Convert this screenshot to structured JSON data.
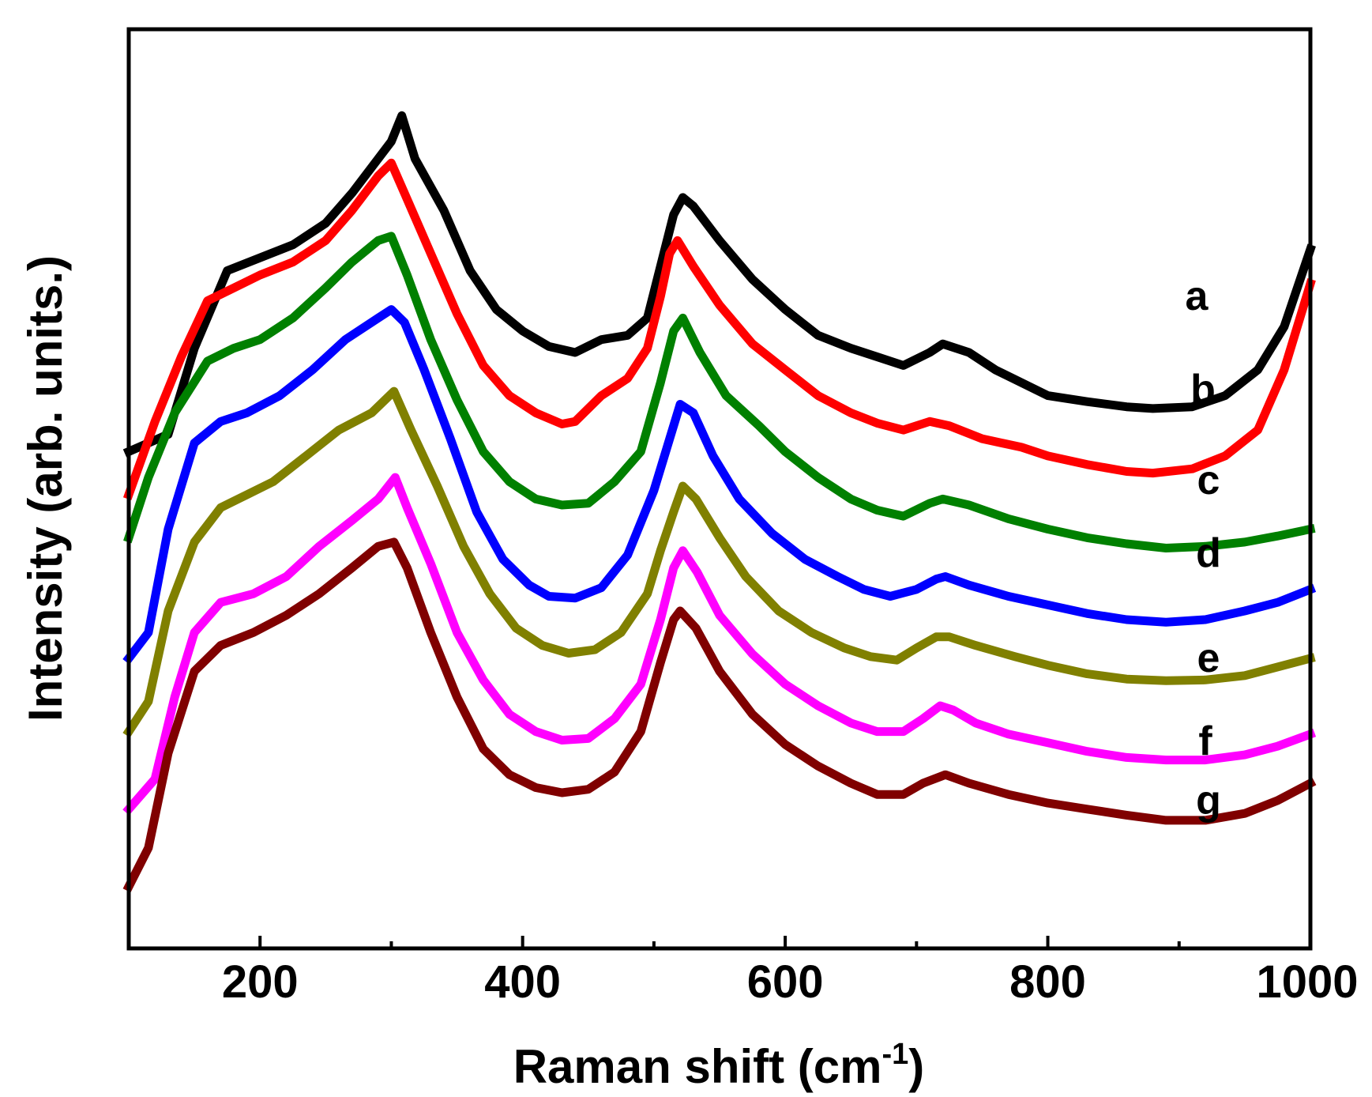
{
  "chart_data": {
    "type": "line",
    "title": "",
    "xlabel": "Raman shift (cm",
    "xlabel_sup": "-1",
    "xlabel_close": ")",
    "ylabel": "Intensity (arb. units.)",
    "xlim": [
      100,
      1000
    ],
    "ylim": [
      0,
      10
    ],
    "x_ticks": [
      200,
      400,
      600,
      800,
      1000
    ],
    "y_ticks_labeled": false,
    "grid": false,
    "legend": "inline labels at right",
    "series": [
      {
        "name": "a",
        "color": "#000000",
        "points": [
          [
            100,
            5.4
          ],
          [
            130,
            5.6
          ],
          [
            150,
            6.6
          ],
          [
            175,
            7.5
          ],
          [
            200,
            7.65
          ],
          [
            225,
            7.8
          ],
          [
            250,
            8.05
          ],
          [
            270,
            8.4
          ],
          [
            290,
            8.8
          ],
          [
            300,
            9.0
          ],
          [
            308,
            9.3
          ],
          [
            318,
            8.8
          ],
          [
            340,
            8.2
          ],
          [
            360,
            7.5
          ],
          [
            380,
            7.05
          ],
          [
            400,
            6.8
          ],
          [
            420,
            6.62
          ],
          [
            440,
            6.55
          ],
          [
            460,
            6.7
          ],
          [
            480,
            6.75
          ],
          [
            495,
            6.95
          ],
          [
            505,
            7.55
          ],
          [
            515,
            8.15
          ],
          [
            522,
            8.35
          ],
          [
            530,
            8.25
          ],
          [
            550,
            7.85
          ],
          [
            575,
            7.4
          ],
          [
            600,
            7.05
          ],
          [
            625,
            6.75
          ],
          [
            650,
            6.6
          ],
          [
            670,
            6.5
          ],
          [
            690,
            6.4
          ],
          [
            710,
            6.55
          ],
          [
            720,
            6.65
          ],
          [
            740,
            6.55
          ],
          [
            760,
            6.35
          ],
          [
            780,
            6.2
          ],
          [
            800,
            6.05
          ],
          [
            830,
            5.98
          ],
          [
            860,
            5.92
          ],
          [
            880,
            5.9
          ],
          [
            910,
            5.92
          ],
          [
            935,
            6.05
          ],
          [
            960,
            6.35
          ],
          [
            980,
            6.85
          ],
          [
            1000,
            7.75
          ]
        ]
      },
      {
        "name": "b",
        "color": "#ff0000",
        "points": [
          [
            100,
            4.9
          ],
          [
            120,
            5.75
          ],
          [
            140,
            6.5
          ],
          [
            160,
            7.15
          ],
          [
            180,
            7.3
          ],
          [
            200,
            7.45
          ],
          [
            225,
            7.6
          ],
          [
            250,
            7.85
          ],
          [
            270,
            8.2
          ],
          [
            290,
            8.6
          ],
          [
            300,
            8.75
          ],
          [
            310,
            8.4
          ],
          [
            330,
            7.7
          ],
          [
            350,
            7.0
          ],
          [
            370,
            6.4
          ],
          [
            390,
            6.05
          ],
          [
            410,
            5.85
          ],
          [
            430,
            5.72
          ],
          [
            440,
            5.75
          ],
          [
            460,
            6.05
          ],
          [
            480,
            6.25
          ],
          [
            495,
            6.6
          ],
          [
            505,
            7.2
          ],
          [
            512,
            7.7
          ],
          [
            518,
            7.85
          ],
          [
            530,
            7.55
          ],
          [
            550,
            7.1
          ],
          [
            575,
            6.65
          ],
          [
            600,
            6.35
          ],
          [
            625,
            6.05
          ],
          [
            650,
            5.85
          ],
          [
            670,
            5.73
          ],
          [
            690,
            5.65
          ],
          [
            710,
            5.75
          ],
          [
            725,
            5.7
          ],
          [
            750,
            5.55
          ],
          [
            780,
            5.45
          ],
          [
            800,
            5.35
          ],
          [
            830,
            5.25
          ],
          [
            860,
            5.17
          ],
          [
            880,
            5.15
          ],
          [
            910,
            5.2
          ],
          [
            935,
            5.35
          ],
          [
            960,
            5.65
          ],
          [
            980,
            6.35
          ],
          [
            1000,
            7.35
          ]
        ]
      },
      {
        "name": "c",
        "color": "#008000",
        "points": [
          [
            100,
            4.4
          ],
          [
            115,
            5.1
          ],
          [
            135,
            5.85
          ],
          [
            160,
            6.45
          ],
          [
            180,
            6.6
          ],
          [
            200,
            6.7
          ],
          [
            225,
            6.95
          ],
          [
            250,
            7.3
          ],
          [
            270,
            7.6
          ],
          [
            290,
            7.85
          ],
          [
            300,
            7.9
          ],
          [
            312,
            7.45
          ],
          [
            330,
            6.7
          ],
          [
            350,
            6.0
          ],
          [
            370,
            5.4
          ],
          [
            390,
            5.05
          ],
          [
            410,
            4.85
          ],
          [
            430,
            4.78
          ],
          [
            450,
            4.8
          ],
          [
            470,
            5.05
          ],
          [
            490,
            5.4
          ],
          [
            505,
            6.2
          ],
          [
            515,
            6.8
          ],
          [
            522,
            6.95
          ],
          [
            535,
            6.55
          ],
          [
            555,
            6.05
          ],
          [
            580,
            5.7
          ],
          [
            600,
            5.4
          ],
          [
            625,
            5.1
          ],
          [
            650,
            4.85
          ],
          [
            670,
            4.72
          ],
          [
            690,
            4.65
          ],
          [
            710,
            4.8
          ],
          [
            720,
            4.85
          ],
          [
            740,
            4.78
          ],
          [
            770,
            4.62
          ],
          [
            800,
            4.5
          ],
          [
            830,
            4.4
          ],
          [
            860,
            4.33
          ],
          [
            890,
            4.28
          ],
          [
            920,
            4.3
          ],
          [
            950,
            4.35
          ],
          [
            975,
            4.42
          ],
          [
            1000,
            4.5
          ]
        ]
      },
      {
        "name": "d",
        "color": "#0000ff",
        "points": [
          [
            100,
            3.0
          ],
          [
            115,
            3.3
          ],
          [
            130,
            4.5
          ],
          [
            150,
            5.5
          ],
          [
            170,
            5.75
          ],
          [
            190,
            5.85
          ],
          [
            215,
            6.05
          ],
          [
            240,
            6.35
          ],
          [
            265,
            6.7
          ],
          [
            290,
            6.95
          ],
          [
            300,
            7.05
          ],
          [
            310,
            6.9
          ],
          [
            325,
            6.35
          ],
          [
            345,
            5.55
          ],
          [
            365,
            4.7
          ],
          [
            385,
            4.15
          ],
          [
            405,
            3.85
          ],
          [
            420,
            3.72
          ],
          [
            440,
            3.7
          ],
          [
            460,
            3.82
          ],
          [
            480,
            4.2
          ],
          [
            500,
            4.95
          ],
          [
            512,
            5.55
          ],
          [
            520,
            5.95
          ],
          [
            530,
            5.85
          ],
          [
            545,
            5.35
          ],
          [
            565,
            4.85
          ],
          [
            590,
            4.45
          ],
          [
            615,
            4.15
          ],
          [
            640,
            3.95
          ],
          [
            660,
            3.8
          ],
          [
            680,
            3.72
          ],
          [
            700,
            3.8
          ],
          [
            715,
            3.92
          ],
          [
            722,
            3.95
          ],
          [
            740,
            3.85
          ],
          [
            770,
            3.72
          ],
          [
            800,
            3.62
          ],
          [
            830,
            3.52
          ],
          [
            860,
            3.45
          ],
          [
            890,
            3.42
          ],
          [
            920,
            3.45
          ],
          [
            950,
            3.55
          ],
          [
            975,
            3.65
          ],
          [
            1000,
            3.8
          ]
        ]
      },
      {
        "name": "e",
        "color": "#808000",
        "points": [
          [
            100,
            2.15
          ],
          [
            115,
            2.5
          ],
          [
            130,
            3.55
          ],
          [
            150,
            4.35
          ],
          [
            170,
            4.75
          ],
          [
            190,
            4.9
          ],
          [
            210,
            5.05
          ],
          [
            235,
            5.35
          ],
          [
            260,
            5.65
          ],
          [
            285,
            5.85
          ],
          [
            302,
            6.1
          ],
          [
            315,
            5.65
          ],
          [
            335,
            5.0
          ],
          [
            355,
            4.3
          ],
          [
            375,
            3.75
          ],
          [
            395,
            3.35
          ],
          [
            415,
            3.15
          ],
          [
            435,
            3.06
          ],
          [
            455,
            3.1
          ],
          [
            475,
            3.3
          ],
          [
            495,
            3.75
          ],
          [
            505,
            4.25
          ],
          [
            515,
            4.7
          ],
          [
            522,
            5.0
          ],
          [
            532,
            4.85
          ],
          [
            550,
            4.4
          ],
          [
            570,
            3.95
          ],
          [
            595,
            3.55
          ],
          [
            620,
            3.3
          ],
          [
            645,
            3.12
          ],
          [
            665,
            3.02
          ],
          [
            685,
            2.98
          ],
          [
            700,
            3.12
          ],
          [
            715,
            3.25
          ],
          [
            725,
            3.25
          ],
          [
            745,
            3.15
          ],
          [
            775,
            3.02
          ],
          [
            800,
            2.92
          ],
          [
            830,
            2.82
          ],
          [
            860,
            2.76
          ],
          [
            890,
            2.74
          ],
          [
            920,
            2.75
          ],
          [
            950,
            2.8
          ],
          [
            975,
            2.9
          ],
          [
            1000,
            3.0
          ]
        ]
      },
      {
        "name": "f",
        "color": "#ff00ff",
        "points": [
          [
            100,
            1.25
          ],
          [
            120,
            1.6
          ],
          [
            135,
            2.55
          ],
          [
            150,
            3.3
          ],
          [
            170,
            3.65
          ],
          [
            195,
            3.75
          ],
          [
            220,
            3.95
          ],
          [
            245,
            4.3
          ],
          [
            270,
            4.6
          ],
          [
            290,
            4.85
          ],
          [
            303,
            5.1
          ],
          [
            312,
            4.75
          ],
          [
            330,
            4.1
          ],
          [
            350,
            3.3
          ],
          [
            370,
            2.75
          ],
          [
            390,
            2.35
          ],
          [
            410,
            2.15
          ],
          [
            430,
            2.05
          ],
          [
            450,
            2.07
          ],
          [
            470,
            2.3
          ],
          [
            490,
            2.7
          ],
          [
            505,
            3.45
          ],
          [
            515,
            4.05
          ],
          [
            522,
            4.25
          ],
          [
            533,
            4.0
          ],
          [
            550,
            3.5
          ],
          [
            575,
            3.05
          ],
          [
            600,
            2.7
          ],
          [
            625,
            2.45
          ],
          [
            650,
            2.25
          ],
          [
            670,
            2.15
          ],
          [
            690,
            2.15
          ],
          [
            705,
            2.3
          ],
          [
            718,
            2.45
          ],
          [
            728,
            2.4
          ],
          [
            745,
            2.25
          ],
          [
            770,
            2.12
          ],
          [
            800,
            2.02
          ],
          [
            830,
            1.92
          ],
          [
            860,
            1.85
          ],
          [
            890,
            1.82
          ],
          [
            920,
            1.82
          ],
          [
            950,
            1.88
          ],
          [
            975,
            1.98
          ],
          [
            1000,
            2.12
          ]
        ]
      },
      {
        "name": "g",
        "color": "#800000",
        "points": [
          [
            100,
            0.35
          ],
          [
            115,
            0.8
          ],
          [
            130,
            1.9
          ],
          [
            150,
            2.85
          ],
          [
            170,
            3.15
          ],
          [
            195,
            3.3
          ],
          [
            220,
            3.5
          ],
          [
            245,
            3.75
          ],
          [
            270,
            4.05
          ],
          [
            290,
            4.3
          ],
          [
            302,
            4.35
          ],
          [
            312,
            4.05
          ],
          [
            330,
            3.3
          ],
          [
            350,
            2.55
          ],
          [
            370,
            1.95
          ],
          [
            390,
            1.65
          ],
          [
            410,
            1.5
          ],
          [
            430,
            1.44
          ],
          [
            450,
            1.48
          ],
          [
            470,
            1.68
          ],
          [
            490,
            2.15
          ],
          [
            505,
            2.95
          ],
          [
            515,
            3.45
          ],
          [
            520,
            3.55
          ],
          [
            532,
            3.35
          ],
          [
            550,
            2.85
          ],
          [
            575,
            2.35
          ],
          [
            600,
            2.0
          ],
          [
            625,
            1.75
          ],
          [
            650,
            1.55
          ],
          [
            670,
            1.42
          ],
          [
            690,
            1.42
          ],
          [
            705,
            1.55
          ],
          [
            722,
            1.65
          ],
          [
            740,
            1.55
          ],
          [
            770,
            1.42
          ],
          [
            800,
            1.32
          ],
          [
            830,
            1.25
          ],
          [
            860,
            1.18
          ],
          [
            890,
            1.12
          ],
          [
            920,
            1.12
          ],
          [
            950,
            1.2
          ],
          [
            975,
            1.35
          ],
          [
            1000,
            1.55
          ]
        ]
      }
    ]
  }
}
